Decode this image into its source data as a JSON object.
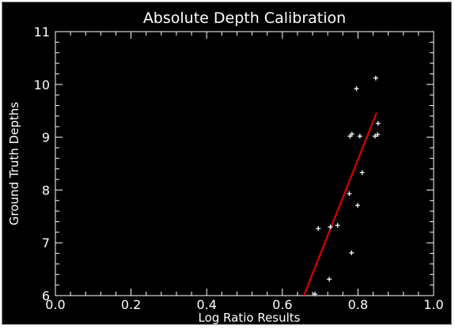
{
  "colors": {
    "background": "#000000",
    "foreground": "#ffffff",
    "fit_line": "#dd0000"
  },
  "chart_data": {
    "type": "scatter",
    "title": "Absolute Depth Calibration",
    "xlabel": "Log Ratio Results",
    "ylabel": "Ground Truth Depths",
    "xlim": [
      0.0,
      1.0
    ],
    "ylim": [
      6,
      11
    ],
    "x_ticks": [
      0.0,
      0.2,
      0.4,
      0.6,
      0.8,
      1.0
    ],
    "x_tick_labels": [
      "0.0",
      "0.2",
      "0.4",
      "0.6",
      "0.8",
      "1.0"
    ],
    "y_ticks": [
      6,
      7,
      8,
      9,
      10,
      11
    ],
    "y_tick_labels": [
      "6",
      "7",
      "8",
      "9",
      "10",
      "11"
    ],
    "x_minor_per_major": 5,
    "y_minor_per_major": 5,
    "grid": false,
    "series": [
      {
        "marker": "+",
        "color": "#ffffff",
        "points": [
          {
            "x": 0.847,
            "y": 10.12
          },
          {
            "x": 0.796,
            "y": 9.92
          },
          {
            "x": 0.853,
            "y": 9.26
          },
          {
            "x": 0.784,
            "y": 9.06
          },
          {
            "x": 0.779,
            "y": 9.02
          },
          {
            "x": 0.805,
            "y": 9.02
          },
          {
            "x": 0.852,
            "y": 9.05
          },
          {
            "x": 0.845,
            "y": 9.02
          },
          {
            "x": 0.811,
            "y": 8.33
          },
          {
            "x": 0.777,
            "y": 7.93
          },
          {
            "x": 0.799,
            "y": 7.71
          },
          {
            "x": 0.746,
            "y": 7.33
          },
          {
            "x": 0.727,
            "y": 7.3
          },
          {
            "x": 0.695,
            "y": 7.27
          },
          {
            "x": 0.783,
            "y": 6.81
          },
          {
            "x": 0.724,
            "y": 6.31
          },
          {
            "x": 0.686,
            "y": 6.03
          }
        ]
      },
      {
        "type": "line",
        "color": "#dd0000",
        "points": [
          {
            "x": 0.657,
            "y": 6.0
          },
          {
            "x": 0.849,
            "y": 9.46
          }
        ]
      }
    ]
  }
}
